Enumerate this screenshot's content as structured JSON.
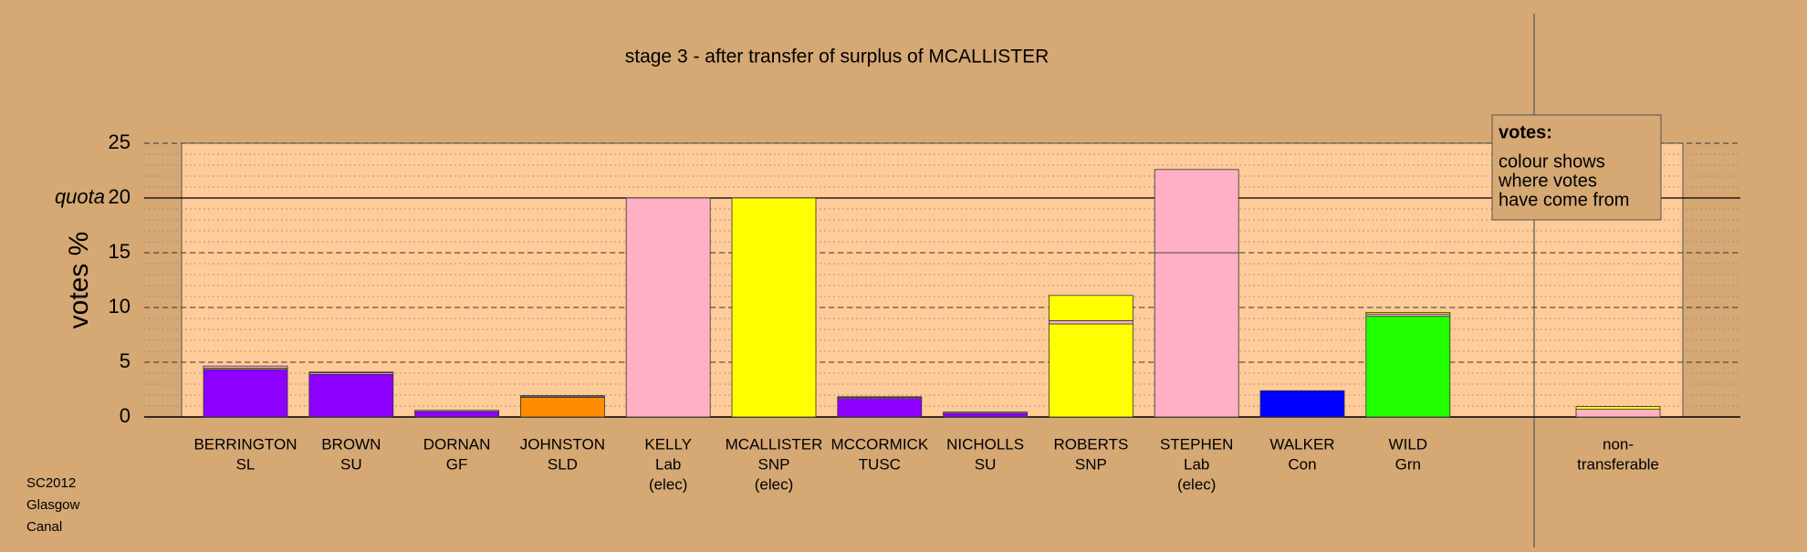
{
  "chart_data": {
    "type": "stacked-bar",
    "title": "stage 3 - after transfer of surplus of MCALLISTER",
    "ylabel": "votes %",
    "ylim": [
      0,
      25
    ],
    "yticks": [
      0,
      5,
      10,
      15,
      20,
      25
    ],
    "minor_grid_step": 1,
    "grid": true,
    "quota": {
      "label": "quota",
      "value": 20
    },
    "bars": [
      {
        "label": [
          "BERRINGTON",
          "SL"
        ],
        "segments": [
          {
            "color": "#8c00ff",
            "value": 4.35
          },
          {
            "color": "#ffff00",
            "value": 0.1
          },
          {
            "color": "#ffb0c4",
            "value": 0.2
          }
        ]
      },
      {
        "label": [
          "BROWN",
          "SU"
        ],
        "segments": [
          {
            "color": "#8c00ff",
            "value": 3.9
          },
          {
            "color": "#ffb0c4",
            "value": 0.15
          },
          {
            "color": "#ffff00",
            "value": 0.05
          }
        ]
      },
      {
        "label": [
          "DORNAN",
          "GF"
        ],
        "segments": [
          {
            "color": "#8c00ff",
            "value": 0.5
          },
          {
            "color": "#ffb0c4",
            "value": 0.1
          }
        ]
      },
      {
        "label": [
          "JOHNSTON",
          "SLD"
        ],
        "segments": [
          {
            "color": "#ff8c00",
            "value": 1.8
          },
          {
            "color": "#ffb0c4",
            "value": 0.1
          },
          {
            "color": "#ffff00",
            "value": 0.05
          }
        ]
      },
      {
        "label": [
          "KELLY",
          "Lab",
          "(elec)"
        ],
        "segments": [
          {
            "color": "#ffb0c4",
            "value": 20
          }
        ]
      },
      {
        "label": [
          "MCALLISTER",
          "SNP",
          "(elec)"
        ],
        "segments": [
          {
            "color": "#ffff00",
            "value": 20
          }
        ]
      },
      {
        "label": [
          "MCCORMICK",
          "TUSC"
        ],
        "segments": [
          {
            "color": "#8c00ff",
            "value": 1.7
          },
          {
            "color": "#ffb0c4",
            "value": 0.1
          },
          {
            "color": "#ffff00",
            "value": 0.05
          }
        ]
      },
      {
        "label": [
          "NICHOLLS",
          "SU"
        ],
        "segments": [
          {
            "color": "#8c00ff",
            "value": 0.35
          },
          {
            "color": "#ffb0c4",
            "value": 0.1
          }
        ]
      },
      {
        "label": [
          "ROBERTS",
          "SNP"
        ],
        "segments": [
          {
            "color": "#ffff00",
            "value": 8.5
          },
          {
            "color": "#ffb0c4",
            "value": 0.3
          },
          {
            "color": "#ffff00",
            "value": 2.3
          }
        ]
      },
      {
        "label": [
          "STEPHEN",
          "Lab",
          "(elec)"
        ],
        "segments": [
          {
            "color": "#ffb0c4",
            "value": 15
          },
          {
            "color": "#ffb0c4",
            "value": 7.6
          }
        ]
      },
      {
        "label": [
          "WALKER",
          "Con"
        ],
        "segments": [
          {
            "color": "#0000ff",
            "value": 2.4
          }
        ]
      },
      {
        "label": [
          "WILD",
          "Grn"
        ],
        "segments": [
          {
            "color": "#22ff00",
            "value": 9.2
          },
          {
            "color": "#ffb0c4",
            "value": 0.2
          },
          {
            "color": "#ffff00",
            "value": 0.15
          }
        ]
      }
    ],
    "nontransferable": {
      "label": [
        "non-",
        "transferable"
      ],
      "segments": [
        {
          "color": "#ffb0c4",
          "value": 0.7
        },
        {
          "color": "#ffff00",
          "value": 0.25
        }
      ]
    },
    "legend": {
      "title": "votes:",
      "lines": [
        "colour shows",
        "where votes",
        "have come from"
      ]
    },
    "footer": [
      "SC2012",
      "Glasgow",
      "Canal"
    ]
  }
}
